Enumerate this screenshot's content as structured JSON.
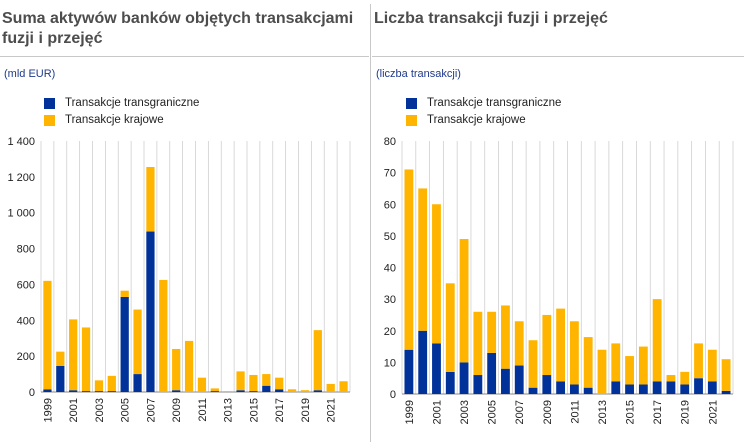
{
  "colors": {
    "cross_border": "#003299",
    "domestic": "#ffb400",
    "grid": "#d0d0d0"
  },
  "chart_data": [
    {
      "type": "bar",
      "stacked": true,
      "title": "Suma aktywów banków objętych transakcjami fuzji i przejęć",
      "unit": "(mld EUR)",
      "legend": [
        "Transakcje transgraniczne",
        "Transakcje krajowe"
      ],
      "legend_position": "top-left",
      "ylim": [
        0,
        1400
      ],
      "yticks": [
        0,
        200,
        400,
        600,
        800,
        1000,
        1200,
        1400
      ],
      "ytick_labels": [
        "0",
        "200",
        "400",
        "600",
        "800",
        "1 000",
        "1 200",
        "1 400"
      ],
      "categories": [
        "1999",
        "2000",
        "2001",
        "2002",
        "2003",
        "2004",
        "2005",
        "2006",
        "2007",
        "2008",
        "2009",
        "2010",
        "2011",
        "2012",
        "2013",
        "2014",
        "2015",
        "2016",
        "2017",
        "2018",
        "2019",
        "2020",
        "2021",
        "2022"
      ],
      "xtick_labels": [
        "1999",
        "2001",
        "2003",
        "2005",
        "2007",
        "2009",
        "2011",
        "2013",
        "2015",
        "2017",
        "2019",
        "2021"
      ],
      "series": [
        {
          "name": "Transakcje transgraniczne",
          "values": [
            15,
            145,
            10,
            5,
            5,
            5,
            530,
            100,
            895,
            0,
            10,
            0,
            0,
            5,
            0,
            10,
            5,
            35,
            15,
            0,
            0,
            10,
            0,
            0
          ]
        },
        {
          "name": "Transakcje krajowe",
          "values": [
            605,
            80,
            395,
            355,
            60,
            85,
            35,
            360,
            360,
            625,
            230,
            285,
            80,
            15,
            5,
            105,
            90,
            65,
            65,
            15,
            10,
            335,
            45,
            60
          ]
        }
      ],
      "grid": "vertical"
    },
    {
      "type": "bar",
      "stacked": true,
      "title": "Liczba transakcji fuzji i przejęć",
      "unit": "(liczba transakcji)",
      "legend": [
        "Transakcje transgraniczne",
        "Transakcje krajowe"
      ],
      "legend_position": "top-left",
      "ylim": [
        0,
        80
      ],
      "yticks": [
        0,
        10,
        20,
        30,
        40,
        50,
        60,
        70,
        80
      ],
      "ytick_labels": [
        "0",
        "10",
        "20",
        "30",
        "40",
        "50",
        "60",
        "70",
        "80"
      ],
      "categories": [
        "1999",
        "2000",
        "2001",
        "2002",
        "2003",
        "2004",
        "2005",
        "2006",
        "2007",
        "2008",
        "2009",
        "2010",
        "2011",
        "2012",
        "2013",
        "2014",
        "2015",
        "2016",
        "2017",
        "2018",
        "2019",
        "2020",
        "2021",
        "2022"
      ],
      "xtick_labels": [
        "1999",
        "2001",
        "2003",
        "2005",
        "2007",
        "2009",
        "2011",
        "2013",
        "2015",
        "2017",
        "2019",
        "2021"
      ],
      "series": [
        {
          "name": "Transakcje transgraniczne",
          "values": [
            14,
            20,
            16,
            7,
            10,
            6,
            13,
            8,
            9,
            2,
            6,
            4,
            3,
            2,
            0,
            4,
            3,
            3,
            4,
            4,
            3,
            5,
            4,
            1
          ]
        },
        {
          "name": "Transakcje krajowe",
          "values": [
            57,
            45,
            44,
            28,
            39,
            20,
            13,
            20,
            14,
            15,
            19,
            23,
            20,
            16,
            14,
            12,
            9,
            12,
            26,
            2,
            4,
            11,
            10,
            10
          ]
        }
      ],
      "grid": "vertical"
    }
  ]
}
